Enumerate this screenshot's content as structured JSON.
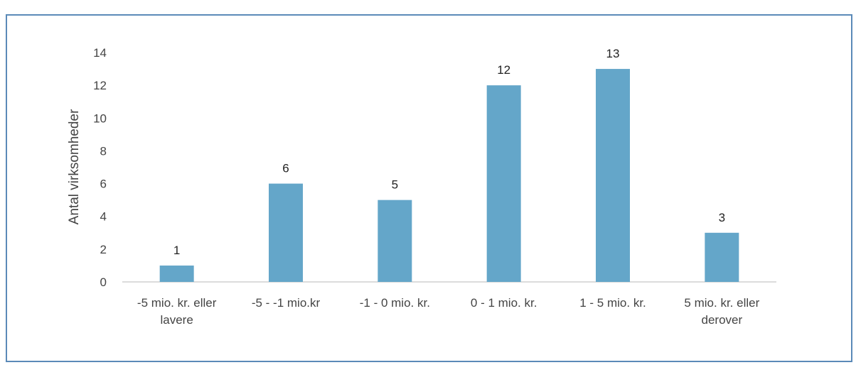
{
  "chart_data": {
    "type": "bar",
    "title": "",
    "ylabel": "Antal virksomheder",
    "xlabel": "",
    "categories": [
      [
        "-5 mio. kr. eller",
        "lavere"
      ],
      [
        "-5 - -1 mio.kr"
      ],
      [
        "-1 - 0 mio. kr."
      ],
      [
        "0 - 1 mio. kr."
      ],
      [
        "1 - 5 mio. kr."
      ],
      [
        "5 mio. kr. eller",
        "derover"
      ]
    ],
    "values": [
      1,
      6,
      5,
      12,
      13,
      3
    ],
    "ylim": [
      0,
      14
    ],
    "yticks": [
      0,
      2,
      4,
      6,
      8,
      10,
      12,
      14
    ],
    "data_labels": true,
    "grid": false,
    "colors": {
      "bar": "#64a6c9",
      "axis": "#d0d0d0"
    }
  }
}
